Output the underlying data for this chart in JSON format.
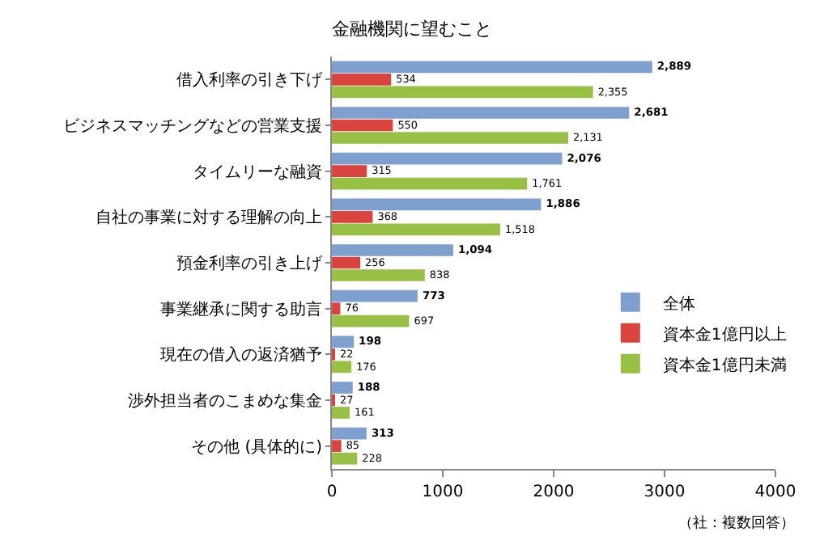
{
  "chart_data": {
    "type": "bar",
    "orientation": "horizontal",
    "title": "金融機関に望むこと",
    "categories": [
      "借入利率の引き下げ",
      "ビジネスマッチングなどの営業支援",
      "タイムリーな融資",
      "自社の事業に対する理解の向上",
      "預金利率の引き上げ",
      "事業継承に関する助言",
      "現在の借入の返済猶予",
      "渉外担当者のこまめな集金",
      "その他 (具体的に)"
    ],
    "series": [
      {
        "name": "全体",
        "color": "#7f9fcf",
        "values": [
          2889,
          2681,
          2076,
          1886,
          1094,
          773,
          198,
          188,
          313
        ],
        "value_labels": [
          "2,889",
          "2,681",
          "2,076",
          "1,886",
          "1,094",
          "773",
          "198",
          "188",
          "313"
        ]
      },
      {
        "name": "資本金1億円以上",
        "color": "#d9443f",
        "values": [
          534,
          550,
          315,
          368,
          256,
          76,
          22,
          27,
          85
        ],
        "value_labels": [
          "534",
          "550",
          "315",
          "368",
          "256",
          "76",
          "22",
          "27",
          "85"
        ]
      },
      {
        "name": "資本金1億円未満",
        "color": "#98c045",
        "values": [
          2355,
          2131,
          1761,
          1518,
          838,
          697,
          176,
          161,
          228
        ],
        "value_labels": [
          "2,355",
          "2,131",
          "1,761",
          "1,518",
          "838",
          "697",
          "176",
          "161",
          "228"
        ]
      }
    ],
    "xlim": [
      0,
      4000
    ],
    "xticks": [
      0,
      1000,
      2000,
      3000,
      4000
    ],
    "legend": "right",
    "annotations": [
      "（社：複数回答）"
    ]
  }
}
